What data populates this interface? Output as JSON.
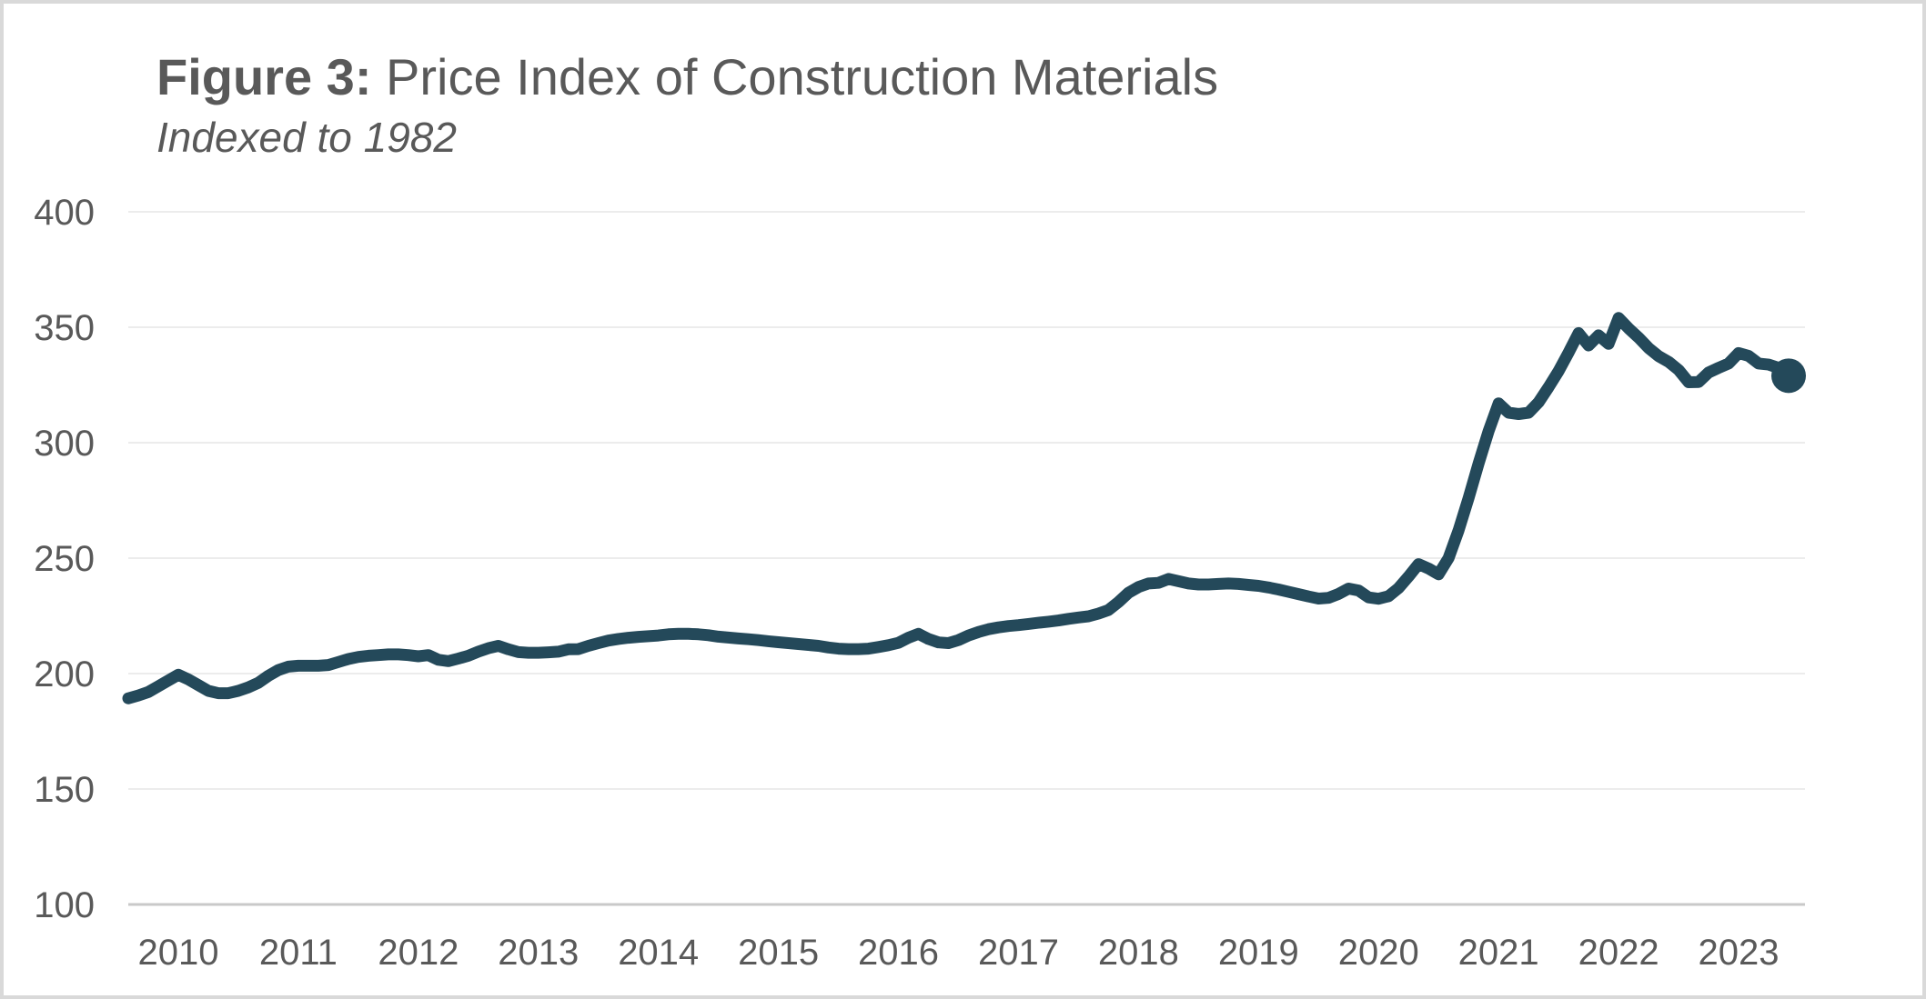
{
  "header": {
    "title_prefix": "Figure 3:",
    "title_rest": " Price Index of Construction Materials",
    "subtitle": "Indexed to 1982"
  },
  "chart_data": {
    "type": "line",
    "title": "Figure 3: Price Index of Construction Materials",
    "subtitle": "Indexed to 1982",
    "frequency": "monthly",
    "x_start_month": "2009-08",
    "x_end_month": "2023-06",
    "x_tick_labels": [
      "2010",
      "2011",
      "2012",
      "2013",
      "2014",
      "2015",
      "2016",
      "2017",
      "2018",
      "2019",
      "2020",
      "2021",
      "2022",
      "2023"
    ],
    "ylim": [
      100,
      400
    ],
    "y_ticks": [
      400,
      350,
      300,
      250,
      200,
      150,
      100
    ],
    "grid": "horizontal-only",
    "legend": "none",
    "line_color": "#24495A",
    "grid_color": "#ECECEC",
    "axis_baseline_color": "#C9C9C9",
    "text_color": "#595959",
    "last_point_marker": true,
    "last_point_value": 329,
    "values": [
      189.3,
      190.5,
      192,
      194.5,
      197,
      199.5,
      197.5,
      195,
      192.5,
      191.5,
      191.5,
      192.5,
      194,
      196,
      199,
      201.5,
      203,
      203.4,
      203.4,
      203.4,
      203.7,
      205,
      206.3,
      207.2,
      207.7,
      208,
      208.3,
      208.3,
      208,
      207.5,
      208,
      206,
      205.4,
      206.5,
      207.7,
      209.5,
      211,
      212,
      210.5,
      209.3,
      209,
      209,
      209.2,
      209.5,
      210.5,
      210.6,
      212,
      213.2,
      214.3,
      215,
      215.5,
      215.9,
      216.2,
      216.5,
      217,
      217.2,
      217.2,
      217,
      216.6,
      216,
      215.6,
      215.2,
      214.9,
      214.5,
      214,
      213.6,
      213.2,
      212.8,
      212.4,
      212,
      211.3,
      210.8,
      210.6,
      210.6,
      210.8,
      211.5,
      212.3,
      213.3,
      215.5,
      217.2,
      215,
      213.5,
      213.2,
      214.5,
      216.5,
      218,
      219.2,
      220,
      220.6,
      221,
      221.5,
      222,
      222.5,
      223,
      223.7,
      224.3,
      224.8,
      226,
      227.5,
      231,
      235,
      237.5,
      239,
      239.3,
      241,
      240,
      239,
      238.6,
      238.6,
      238.8,
      239,
      238.8,
      238.4,
      238,
      237.3,
      236.4,
      235.4,
      234.4,
      233.4,
      232.5,
      232.8,
      234.5,
      236.8,
      236,
      233,
      232.4,
      233.5,
      237,
      242,
      247.4,
      245.5,
      243,
      250,
      262,
      276,
      291,
      305,
      317,
      313,
      312.4,
      313,
      317.5,
      324,
      331,
      339,
      347.5,
      342.1,
      346.5,
      342.8,
      354,
      349.5,
      345.5,
      341,
      337.5,
      335,
      331.5,
      326.2,
      326.3,
      330.4,
      332.4,
      334.3,
      338.8,
      337.6,
      334.3,
      333.8,
      332.4,
      329
    ]
  }
}
